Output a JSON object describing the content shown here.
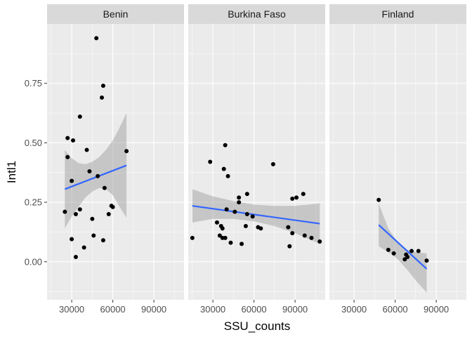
{
  "chart_data": {
    "type": "scatter",
    "facet_by": "country",
    "xlabel": "SSU_counts",
    "ylabel": "Intl1",
    "xlim": [
      12000,
      112000
    ],
    "ylim": [
      -0.16,
      1.0
    ],
    "x_ticks": [
      30000,
      60000,
      90000
    ],
    "y_ticks": [
      0.0,
      0.25,
      0.5,
      0.75
    ],
    "y_tick_labels": [
      "0.00",
      "0.25",
      "0.50",
      "0.75"
    ],
    "colors": {
      "panel_bg": "#ebebeb",
      "grid_major": "#ffffff",
      "strip_bg": "#d9d9d9",
      "point": "#000000",
      "trend": "#3366ff",
      "ribbon": "#999999"
    },
    "facets": [
      {
        "name": "Benin",
        "trend": {
          "x": [
            25000,
            70000
          ],
          "y": [
            0.305,
            0.405
          ]
        },
        "ribbon": {
          "x": [
            25000,
            30000,
            35000,
            40000,
            45000,
            50000,
            55000,
            60000,
            65000,
            70000
          ],
          "upper": [
            0.47,
            0.435,
            0.415,
            0.41,
            0.42,
            0.44,
            0.47,
            0.51,
            0.565,
            0.625
          ],
          "lower": [
            0.14,
            0.19,
            0.23,
            0.27,
            0.295,
            0.31,
            0.305,
            0.28,
            0.23,
            0.185
          ]
        },
        "points": {
          "x": [
            48000,
            53000,
            52000,
            36000,
            27000,
            31000,
            41000,
            27000,
            49000,
            30000,
            43000,
            54000,
            70000,
            59000,
            60000,
            57000,
            36000,
            25000,
            33000,
            45000,
            46000,
            30000,
            53000,
            39000,
            33000
          ],
          "y": [
            0.94,
            0.74,
            0.69,
            0.61,
            0.52,
            0.51,
            0.47,
            0.44,
            0.36,
            0.34,
            0.38,
            0.31,
            0.465,
            0.235,
            0.23,
            0.2,
            0.22,
            0.21,
            0.2,
            0.18,
            0.11,
            0.095,
            0.09,
            0.06,
            0.02
          ]
        }
      },
      {
        "name": "Burkina Faso",
        "trend": {
          "x": [
            15000,
            108000
          ],
          "y": [
            0.235,
            0.16
          ]
        },
        "ribbon": {
          "x": [
            15000,
            30000,
            45000,
            60000,
            75000,
            90000,
            108000
          ],
          "upper": [
            0.305,
            0.275,
            0.255,
            0.24,
            0.235,
            0.235,
            0.245
          ],
          "lower": [
            0.165,
            0.18,
            0.18,
            0.17,
            0.15,
            0.12,
            0.075
          ]
        },
        "points": {
          "x": [
            39000,
            74000,
            28000,
            38000,
            41000,
            55000,
            49000,
            49000,
            40000,
            46000,
            55000,
            59000,
            88000,
            91000,
            96000,
            85000,
            33000,
            36000,
            37000,
            54000,
            63000,
            65000,
            35000,
            37000,
            39000,
            43000,
            51000,
            86000,
            88000,
            97000,
            102000,
            108000,
            15000
          ],
          "y": [
            0.49,
            0.41,
            0.42,
            0.39,
            0.36,
            0.285,
            0.27,
            0.25,
            0.22,
            0.21,
            0.2,
            0.19,
            0.265,
            0.27,
            0.285,
            0.145,
            0.165,
            0.15,
            0.14,
            0.15,
            0.145,
            0.14,
            0.11,
            0.1,
            0.1,
            0.08,
            0.075,
            0.065,
            0.12,
            0.11,
            0.1,
            0.085,
            0.1
          ]
        }
      },
      {
        "name": "Finland",
        "trend": {
          "x": [
            48000,
            83000
          ],
          "y": [
            0.155,
            -0.03
          ]
        },
        "ribbon": {
          "x": [
            48000,
            55000,
            62000,
            69000,
            76000,
            83000
          ],
          "upper": [
            0.245,
            0.14,
            0.08,
            0.05,
            0.04,
            0.035
          ],
          "lower": [
            0.065,
            0.04,
            0.01,
            -0.035,
            -0.085,
            -0.13
          ]
        },
        "points": {
          "x": [
            48000,
            55000,
            59000,
            68000,
            69000,
            72000,
            77000,
            83000,
            67000
          ],
          "y": [
            0.26,
            0.05,
            0.035,
            0.03,
            0.02,
            0.045,
            0.045,
            0.005,
            0.01
          ]
        }
      }
    ]
  }
}
